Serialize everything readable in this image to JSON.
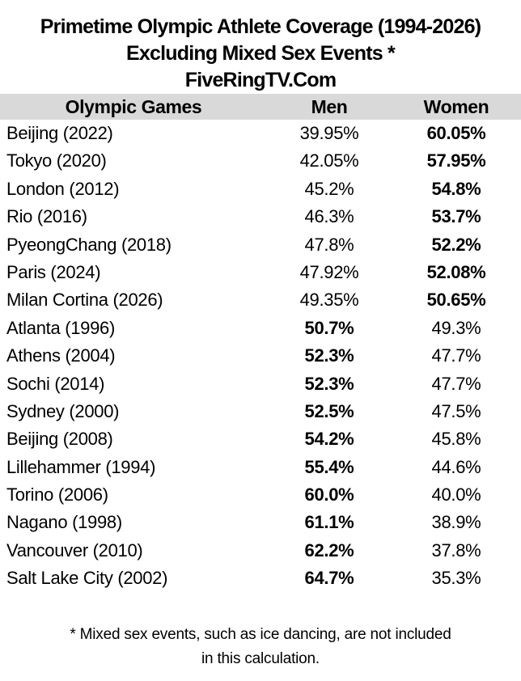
{
  "title": {
    "line1": "Primetime Olympic Athlete Coverage (1994-2026)",
    "line2": "Excluding Mixed Sex Events *",
    "line3": "FiveRingTV.Com"
  },
  "colors": {
    "header_bg": "#d9d9d9",
    "text": "#000000",
    "background": "#ffffff"
  },
  "table": {
    "headers": {
      "games": "Olympic Games",
      "men": "Men",
      "women": "Women"
    },
    "rows": [
      {
        "game": "Beijing (2022)",
        "men": "39.95%",
        "women": "60.05%",
        "bold": "women"
      },
      {
        "game": "Tokyo (2020)",
        "men": "42.05%",
        "women": "57.95%",
        "bold": "women"
      },
      {
        "game": "London (2012)",
        "men": "45.2%",
        "women": "54.8%",
        "bold": "women"
      },
      {
        "game": "Rio (2016)",
        "men": "46.3%",
        "women": "53.7%",
        "bold": "women"
      },
      {
        "game": "PyeongChang (2018)",
        "men": "47.8%",
        "women": "52.2%",
        "bold": "women"
      },
      {
        "game": "Paris (2024)",
        "men": "47.92%",
        "women": "52.08%",
        "bold": "women"
      },
      {
        "game": "Milan Cortina (2026)",
        "men": "49.35%",
        "women": "50.65%",
        "bold": "women"
      },
      {
        "game": "Atlanta (1996)",
        "men": "50.7%",
        "women": "49.3%",
        "bold": "men"
      },
      {
        "game": "Athens (2004)",
        "men": "52.3%",
        "women": "47.7%",
        "bold": "men"
      },
      {
        "game": "Sochi (2014)",
        "men": "52.3%",
        "women": "47.7%",
        "bold": "men"
      },
      {
        "game": "Sydney (2000)",
        "men": "52.5%",
        "women": "47.5%",
        "bold": "men"
      },
      {
        "game": "Beijing (2008)",
        "men": "54.2%",
        "women": "45.8%",
        "bold": "men"
      },
      {
        "game": "Lillehammer (1994)",
        "men": "55.4%",
        "women": "44.6%",
        "bold": "men"
      },
      {
        "game": "Torino (2006)",
        "men": "60.0%",
        "women": "40.0%",
        "bold": "men"
      },
      {
        "game": "Nagano (1998)",
        "men": "61.1%",
        "women": "38.9%",
        "bold": "men"
      },
      {
        "game": "Vancouver (2010)",
        "men": "62.2%",
        "women": "37.8%",
        "bold": "men"
      },
      {
        "game": "Salt Lake City (2002)",
        "men": "64.7%",
        "women": "35.3%",
        "bold": "men"
      }
    ]
  },
  "footnote": {
    "line1": "* Mixed sex events, such as ice dancing, are not included",
    "line2": "in this calculation."
  },
  "chart_data": {
    "type": "table",
    "title": "Primetime Olympic Athlete Coverage (1994-2026) Excluding Mixed Sex Events *",
    "subtitle": "FiveRingTV.Com",
    "columns": [
      "Olympic Games",
      "Men",
      "Women"
    ],
    "categories": [
      "Beijing (2022)",
      "Tokyo (2020)",
      "London (2012)",
      "Rio (2016)",
      "PyeongChang (2018)",
      "Paris (2024)",
      "Milan Cortina (2026)",
      "Atlanta (1996)",
      "Athens (2004)",
      "Sochi (2014)",
      "Sydney (2000)",
      "Beijing (2008)",
      "Lillehammer (1994)",
      "Torino (2006)",
      "Nagano (1998)",
      "Vancouver (2010)",
      "Salt Lake City (2002)"
    ],
    "series": [
      {
        "name": "Men",
        "values": [
          39.95,
          42.05,
          45.2,
          46.3,
          47.8,
          47.92,
          49.35,
          50.7,
          52.3,
          52.3,
          52.5,
          54.2,
          55.4,
          60.0,
          61.1,
          62.2,
          64.7
        ]
      },
      {
        "name": "Women",
        "values": [
          60.05,
          57.95,
          54.8,
          53.7,
          52.2,
          52.08,
          50.65,
          49.3,
          47.7,
          47.7,
          47.5,
          45.8,
          44.6,
          40.0,
          38.9,
          37.8,
          35.3
        ]
      }
    ],
    "units": "percent",
    "annotations": [
      "* Mixed sex events, such as ice dancing, are not included in this calculation."
    ],
    "sort": "ascending by Men share",
    "legend_position": "none",
    "grid": false
  }
}
